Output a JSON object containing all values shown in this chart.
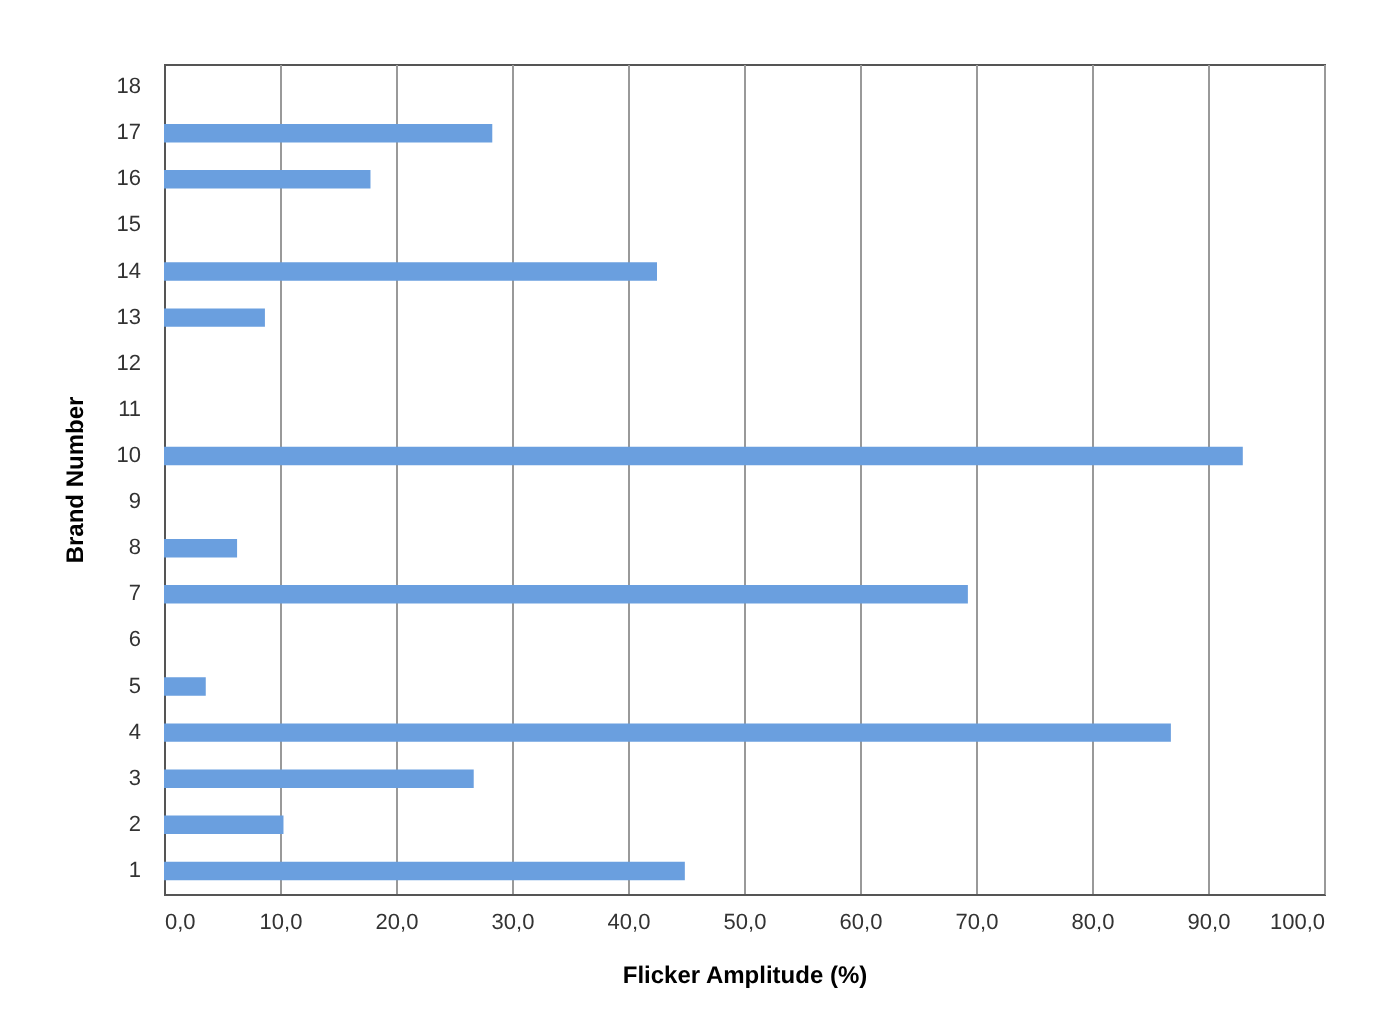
{
  "chart_data": {
    "type": "bar",
    "orientation": "horizontal",
    "xlabel": "Flicker Amplitude (%)",
    "ylabel": "Brand Number",
    "categories": [
      "18",
      "17",
      "16",
      "15",
      "14",
      "13",
      "12",
      "11",
      "10",
      "9",
      "8",
      "7",
      "6",
      "5",
      "4",
      "3",
      "2",
      "1"
    ],
    "values": [
      0,
      28.3,
      17.8,
      0,
      42.5,
      8.7,
      0,
      0,
      93.0,
      0,
      6.3,
      69.3,
      0,
      3.6,
      86.8,
      26.7,
      10.3,
      44.9
    ],
    "color": "#6a9fdf",
    "xlim": [
      0,
      100
    ],
    "xticks": [
      {
        "value": 0,
        "label": "0,0"
      },
      {
        "value": 10,
        "label": "10,0"
      },
      {
        "value": 20,
        "label": "20,0"
      },
      {
        "value": 30,
        "label": "30,0"
      },
      {
        "value": 40,
        "label": "40,0"
      },
      {
        "value": 50,
        "label": "50,0"
      },
      {
        "value": 60,
        "label": "60,0"
      },
      {
        "value": 70,
        "label": "70,0"
      },
      {
        "value": 80,
        "label": "80,0"
      },
      {
        "value": 90,
        "label": "90,0"
      },
      {
        "value": 100,
        "label": "100,0"
      }
    ],
    "grid": "x"
  }
}
